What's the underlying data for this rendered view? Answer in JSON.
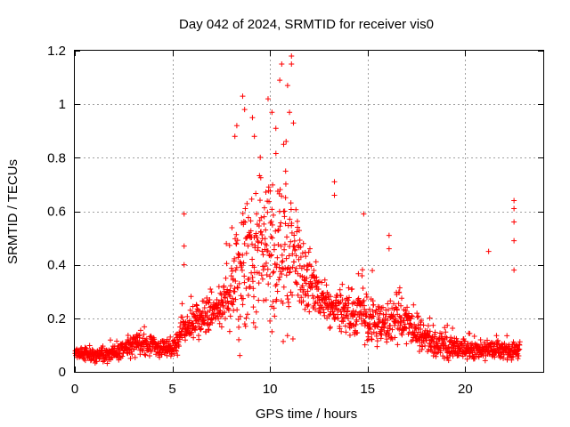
{
  "chart_data": {
    "type": "scatter",
    "title": "Day 042 of 2024, SRMTID for receiver vis0",
    "xlabel": "GPS time / hours",
    "ylabel": "SRMTID / TECUs",
    "xlim": [
      0,
      24
    ],
    "ylim": [
      0,
      1.2
    ],
    "grid": true,
    "marker": "plus",
    "color": "#ff0000",
    "xticks": [
      0,
      5,
      10,
      15,
      20
    ],
    "xtick_labels": [
      "0",
      "5",
      "10",
      "15",
      "20"
    ],
    "yticks": [
      0,
      0.2,
      0.4,
      0.6,
      0.8,
      1.0,
      1.2
    ],
    "ytick_labels": [
      "0",
      "0.2",
      "0.4",
      "0.6",
      "0.8",
      "1",
      "1.2"
    ],
    "envelope": {
      "description": "approximate median and spread of SRMTID vs time, read from the plot",
      "x": [
        0,
        1,
        2,
        3,
        4,
        5,
        5.5,
        6,
        7,
        8,
        8.5,
        9,
        9.5,
        10,
        10.5,
        11,
        11.5,
        12,
        12.5,
        13,
        14,
        15,
        16,
        16.5,
        17,
        18,
        19,
        20,
        21,
        22,
        22.8
      ],
      "median": [
        0.07,
        0.06,
        0.07,
        0.1,
        0.1,
        0.08,
        0.15,
        0.18,
        0.22,
        0.28,
        0.35,
        0.42,
        0.45,
        0.45,
        0.42,
        0.4,
        0.38,
        0.33,
        0.28,
        0.24,
        0.22,
        0.2,
        0.18,
        0.2,
        0.18,
        0.12,
        0.1,
        0.08,
        0.08,
        0.08,
        0.08
      ],
      "spread": [
        0.03,
        0.05,
        0.06,
        0.08,
        0.07,
        0.05,
        0.12,
        0.1,
        0.12,
        0.22,
        0.45,
        0.45,
        0.4,
        0.45,
        0.55,
        0.5,
        0.25,
        0.2,
        0.15,
        0.12,
        0.12,
        0.18,
        0.15,
        0.15,
        0.12,
        0.08,
        0.08,
        0.06,
        0.06,
        0.05,
        0.06
      ]
    },
    "notable_points": [
      {
        "x": 5.6,
        "y": 0.59
      },
      {
        "x": 5.6,
        "y": 0.47
      },
      {
        "x": 5.6,
        "y": 0.4
      },
      {
        "x": 8.6,
        "y": 1.03
      },
      {
        "x": 8.7,
        "y": 0.98
      },
      {
        "x": 8.3,
        "y": 0.92
      },
      {
        "x": 8.2,
        "y": 0.88
      },
      {
        "x": 9.1,
        "y": 0.95
      },
      {
        "x": 9.2,
        "y": 0.88
      },
      {
        "x": 9.9,
        "y": 1.02
      },
      {
        "x": 10.1,
        "y": 0.97
      },
      {
        "x": 10.6,
        "y": 1.15
      },
      {
        "x": 10.5,
        "y": 1.09
      },
      {
        "x": 11.1,
        "y": 1.18
      },
      {
        "x": 11.1,
        "y": 1.15
      },
      {
        "x": 10.9,
        "y": 1.07
      },
      {
        "x": 11.0,
        "y": 0.97
      },
      {
        "x": 11.2,
        "y": 0.93
      },
      {
        "x": 10.3,
        "y": 0.91
      },
      {
        "x": 10.7,
        "y": 0.85
      },
      {
        "x": 10.8,
        "y": 0.75
      },
      {
        "x": 13.3,
        "y": 0.71
      },
      {
        "x": 13.3,
        "y": 0.66
      },
      {
        "x": 14.8,
        "y": 0.59
      },
      {
        "x": 16.1,
        "y": 0.51
      },
      {
        "x": 16.1,
        "y": 0.46
      },
      {
        "x": 21.2,
        "y": 0.45
      },
      {
        "x": 22.5,
        "y": 0.64
      },
      {
        "x": 22.5,
        "y": 0.61
      },
      {
        "x": 22.5,
        "y": 0.56
      },
      {
        "x": 22.5,
        "y": 0.49
      },
      {
        "x": 22.5,
        "y": 0.38
      },
      {
        "x": 8.4,
        "y": 0.12
      },
      {
        "x": 10.1,
        "y": 0.15
      }
    ]
  }
}
